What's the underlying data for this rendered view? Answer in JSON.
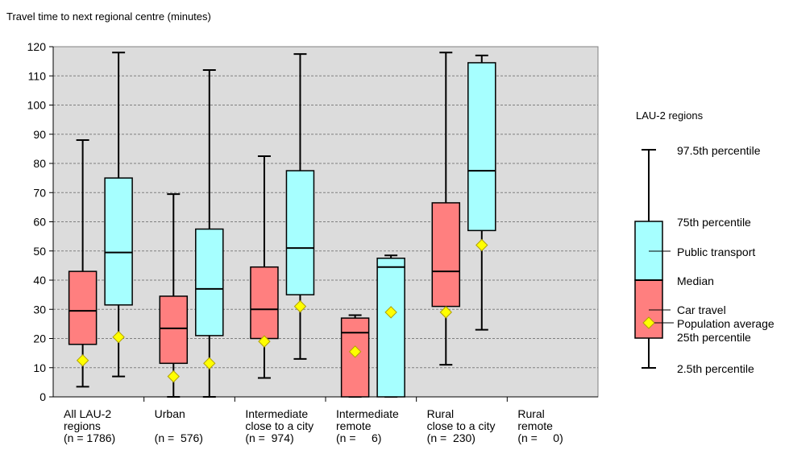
{
  "chart_data": {
    "type": "boxplot",
    "title": "Travel time to next regional centre (minutes)",
    "ylim": [
      0,
      120
    ],
    "yticks": [
      0,
      10,
      20,
      30,
      40,
      50,
      60,
      70,
      80,
      90,
      100,
      110,
      120
    ],
    "grid": true,
    "colors": {
      "plot_bg": "#dcdcdc",
      "car": "#ff7f7f",
      "public": "#a6ffff",
      "marker": "#ffff00",
      "marker_stroke": "#b0a000"
    },
    "categories": [
      {
        "lines": [
          "All LAU-2",
          "regions",
          "(n = 1786)"
        ]
      },
      {
        "lines": [
          "Urban",
          "",
          "(n =  576)"
        ]
      },
      {
        "lines": [
          "Intermediate",
          "close to a city",
          "(n =  974)"
        ]
      },
      {
        "lines": [
          "Intermediate",
          "remote",
          "(n =     6)"
        ]
      },
      {
        "lines": [
          "Rural",
          "close to a city",
          "(n =  230)"
        ]
      },
      {
        "lines": [
          "Rural",
          "remote",
          "(n =     0)"
        ]
      }
    ],
    "series": [
      {
        "name": "Car travel",
        "color": "#ff7f7f",
        "boxes": [
          {
            "low": 3.5,
            "q1": 18,
            "median": 29.5,
            "q3": 43,
            "high": 88,
            "mean": 12.5
          },
          {
            "low": 0,
            "q1": 11.5,
            "median": 23.5,
            "q3": 34.5,
            "high": 69.5,
            "mean": 7
          },
          {
            "low": 6.5,
            "q1": 20,
            "median": 30,
            "q3": 44.5,
            "high": 82.5,
            "mean": 19
          },
          {
            "low": 0,
            "q1": 0,
            "median": 22,
            "q3": 27,
            "high": 28,
            "mean": 15.5
          },
          {
            "low": 11,
            "q1": 31,
            "median": 43,
            "q3": 66.5,
            "high": 118,
            "mean": 29
          },
          null
        ]
      },
      {
        "name": "Public transport",
        "color": "#a6ffff",
        "boxes": [
          {
            "low": 7,
            "q1": 31.5,
            "median": 49.5,
            "q3": 75,
            "high": 118,
            "mean": 20.5
          },
          {
            "low": 0,
            "q1": 21,
            "median": 37,
            "q3": 57.5,
            "high": 112,
            "mean": 11.5
          },
          {
            "low": 13,
            "q1": 35,
            "median": 51,
            "q3": 77.5,
            "high": 117.5,
            "mean": 31
          },
          {
            "low": 0,
            "q1": 0,
            "median": 44.5,
            "q3": 47.5,
            "high": 48.5,
            "mean": 29
          },
          {
            "low": 23,
            "q1": 57,
            "median": 77.5,
            "q3": 114.5,
            "high": 117,
            "mean": 52
          },
          null
        ]
      }
    ],
    "legend": {
      "title": "LAU-2 regions",
      "p975": "97.5th percentile",
      "p75": "75th percentile",
      "public": "Public transport",
      "median": "Median",
      "car": "Car travel",
      "mean": "Population average",
      "p25": "25th percentile",
      "p025": "2.5th percentile"
    }
  }
}
